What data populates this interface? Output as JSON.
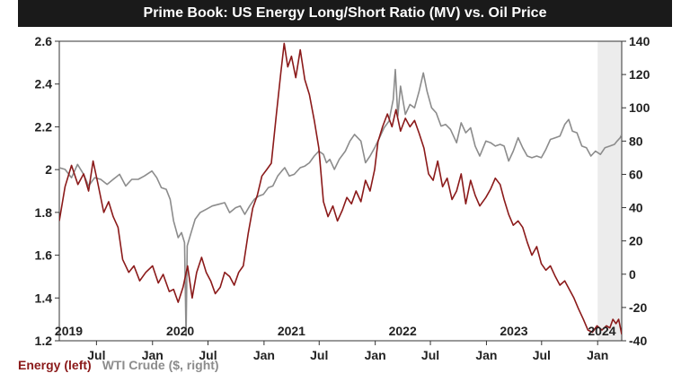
{
  "chart_data": {
    "type": "line",
    "title": "Prime Book: US Energy Long/Short Ratio (MV) vs. Oil Price",
    "x_range": [
      "2019-03-01",
      "2024-03-20"
    ],
    "y_left": {
      "ylim": [
        1.2,
        2.6
      ],
      "ticks": [
        "1.2",
        "1.4",
        "1.6",
        "1.8",
        "2",
        "2.2",
        "2.4",
        "2.6"
      ]
    },
    "y_right": {
      "ylim": [
        -40,
        140
      ],
      "ticks": [
        "-40",
        "-20",
        "0",
        "20",
        "40",
        "60",
        "80",
        "100",
        "120",
        "140"
      ]
    },
    "x_month_labels": [
      {
        "date": "2019-07-01",
        "label": "Jul"
      },
      {
        "date": "2020-01-01",
        "label": "Jan"
      },
      {
        "date": "2020-07-01",
        "label": "Jul"
      },
      {
        "date": "2021-01-01",
        "label": "Jan"
      },
      {
        "date": "2021-07-01",
        "label": "Jul"
      },
      {
        "date": "2022-01-01",
        "label": "Jan"
      },
      {
        "date": "2022-07-01",
        "label": "Jul"
      },
      {
        "date": "2023-01-01",
        "label": "Jan"
      },
      {
        "date": "2023-07-01",
        "label": "Jul"
      },
      {
        "date": "2024-01-01",
        "label": "Jan"
      }
    ],
    "x_year_labels": [
      {
        "date": "2019-04-01",
        "label": "2019"
      },
      {
        "date": "2020-04-01",
        "label": "2020"
      },
      {
        "date": "2021-04-01",
        "label": "2021"
      },
      {
        "date": "2022-04-01",
        "label": "2022"
      },
      {
        "date": "2023-04-01",
        "label": "2023"
      },
      {
        "date": "2024-01-15",
        "label": "2024"
      }
    ],
    "shaded_region": {
      "start": "2024-01-01",
      "end": "2024-03-20",
      "color": "#ececec"
    },
    "grid": true,
    "series": [
      {
        "name": "Energy (left)",
        "axis": "left",
        "color": "#8b1a1a",
        "points": [
          [
            "2019-03-01",
            1.76
          ],
          [
            "2019-03-20",
            1.92
          ],
          [
            "2019-04-10",
            2.02
          ],
          [
            "2019-05-01",
            1.93
          ],
          [
            "2019-05-20",
            1.98
          ],
          [
            "2019-06-05",
            1.9
          ],
          [
            "2019-06-20",
            2.04
          ],
          [
            "2019-07-05",
            1.94
          ],
          [
            "2019-07-25",
            1.8
          ],
          [
            "2019-08-10",
            1.85
          ],
          [
            "2019-08-25",
            1.78
          ],
          [
            "2019-09-10",
            1.73
          ],
          [
            "2019-09-25",
            1.58
          ],
          [
            "2019-10-15",
            1.52
          ],
          [
            "2019-11-01",
            1.55
          ],
          [
            "2019-11-20",
            1.48
          ],
          [
            "2019-12-10",
            1.52
          ],
          [
            "2020-01-01",
            1.55
          ],
          [
            "2020-01-20",
            1.47
          ],
          [
            "2020-02-05",
            1.51
          ],
          [
            "2020-02-25",
            1.43
          ],
          [
            "2020-03-10",
            1.44
          ],
          [
            "2020-03-25",
            1.38
          ],
          [
            "2020-04-10",
            1.45
          ],
          [
            "2020-04-25",
            1.55
          ],
          [
            "2020-05-10",
            1.4
          ],
          [
            "2020-05-25",
            1.52
          ],
          [
            "2020-06-10",
            1.59
          ],
          [
            "2020-06-25",
            1.52
          ],
          [
            "2020-07-10",
            1.48
          ],
          [
            "2020-07-25",
            1.42
          ],
          [
            "2020-08-10",
            1.45
          ],
          [
            "2020-08-25",
            1.52
          ],
          [
            "2020-09-10",
            1.5
          ],
          [
            "2020-09-25",
            1.46
          ],
          [
            "2020-10-10",
            1.52
          ],
          [
            "2020-10-25",
            1.55
          ],
          [
            "2020-11-10",
            1.7
          ],
          [
            "2020-11-25",
            1.82
          ],
          [
            "2020-12-10",
            1.88
          ],
          [
            "2020-12-25",
            1.97
          ],
          [
            "2021-01-10",
            2.0
          ],
          [
            "2021-01-25",
            2.03
          ],
          [
            "2021-02-10",
            2.25
          ],
          [
            "2021-02-25",
            2.45
          ],
          [
            "2021-03-08",
            2.59
          ],
          [
            "2021-03-20",
            2.48
          ],
          [
            "2021-04-01",
            2.53
          ],
          [
            "2021-04-15",
            2.43
          ],
          [
            "2021-04-30",
            2.56
          ],
          [
            "2021-05-15",
            2.42
          ],
          [
            "2021-05-30",
            2.35
          ],
          [
            "2021-06-15",
            2.23
          ],
          [
            "2021-06-30",
            2.1
          ],
          [
            "2021-07-15",
            1.85
          ],
          [
            "2021-07-30",
            1.78
          ],
          [
            "2021-08-15",
            1.83
          ],
          [
            "2021-08-30",
            1.76
          ],
          [
            "2021-09-15",
            1.81
          ],
          [
            "2021-09-30",
            1.87
          ],
          [
            "2021-10-15",
            1.84
          ],
          [
            "2021-10-30",
            1.9
          ],
          [
            "2021-11-15",
            1.85
          ],
          [
            "2021-11-30",
            1.95
          ],
          [
            "2021-12-15",
            1.9
          ],
          [
            "2021-12-30",
            2.0
          ],
          [
            "2022-01-10",
            2.13
          ],
          [
            "2022-01-25",
            2.2
          ],
          [
            "2022-02-10",
            2.26
          ],
          [
            "2022-02-25",
            2.2
          ],
          [
            "2022-03-10",
            2.28
          ],
          [
            "2022-03-25",
            2.18
          ],
          [
            "2022-04-10",
            2.24
          ],
          [
            "2022-04-25",
            2.2
          ],
          [
            "2022-05-10",
            2.23
          ],
          [
            "2022-05-25",
            2.17
          ],
          [
            "2022-06-10",
            2.1
          ],
          [
            "2022-06-25",
            1.98
          ],
          [
            "2022-07-10",
            1.95
          ],
          [
            "2022-07-25",
            2.04
          ],
          [
            "2022-08-10",
            1.92
          ],
          [
            "2022-08-25",
            1.96
          ],
          [
            "2022-09-10",
            1.86
          ],
          [
            "2022-09-25",
            1.9
          ],
          [
            "2022-10-10",
            1.98
          ],
          [
            "2022-10-25",
            1.84
          ],
          [
            "2022-11-10",
            1.95
          ],
          [
            "2022-11-25",
            1.88
          ],
          [
            "2022-12-10",
            1.83
          ],
          [
            "2022-12-30",
            1.87
          ],
          [
            "2023-01-15",
            1.91
          ],
          [
            "2023-01-30",
            1.96
          ],
          [
            "2023-02-15",
            1.93
          ],
          [
            "2023-02-28",
            1.86
          ],
          [
            "2023-03-15",
            1.79
          ],
          [
            "2023-03-30",
            1.74
          ],
          [
            "2023-04-15",
            1.76
          ],
          [
            "2023-04-30",
            1.73
          ],
          [
            "2023-05-15",
            1.66
          ],
          [
            "2023-05-30",
            1.6
          ],
          [
            "2023-06-15",
            1.64
          ],
          [
            "2023-06-30",
            1.56
          ],
          [
            "2023-07-15",
            1.53
          ],
          [
            "2023-07-30",
            1.55
          ],
          [
            "2023-08-15",
            1.5
          ],
          [
            "2023-08-30",
            1.46
          ],
          [
            "2023-09-15",
            1.48
          ],
          [
            "2023-09-30",
            1.44
          ],
          [
            "2023-10-15",
            1.4
          ],
          [
            "2023-10-30",
            1.35
          ],
          [
            "2023-11-15",
            1.3
          ],
          [
            "2023-11-30",
            1.25
          ],
          [
            "2023-12-15",
            1.24
          ],
          [
            "2023-12-30",
            1.27
          ],
          [
            "2024-01-15",
            1.25
          ],
          [
            "2024-01-30",
            1.27
          ],
          [
            "2024-02-10",
            1.26
          ],
          [
            "2024-02-20",
            1.3
          ],
          [
            "2024-03-01",
            1.28
          ],
          [
            "2024-03-10",
            1.3
          ],
          [
            "2024-03-20",
            1.23
          ]
        ]
      },
      {
        "name": "WTI Crude ($, right)",
        "axis": "right",
        "color": "#8c8c8c",
        "points": [
          [
            "2019-03-01",
            64
          ],
          [
            "2019-03-20",
            63
          ],
          [
            "2019-04-10",
            58
          ],
          [
            "2019-04-30",
            66
          ],
          [
            "2019-05-20",
            60
          ],
          [
            "2019-06-05",
            53
          ],
          [
            "2019-06-25",
            58
          ],
          [
            "2019-07-15",
            57
          ],
          [
            "2019-08-05",
            54
          ],
          [
            "2019-08-25",
            57
          ],
          [
            "2019-09-15",
            60
          ],
          [
            "2019-10-05",
            53
          ],
          [
            "2019-10-25",
            57
          ],
          [
            "2019-11-15",
            57
          ],
          [
            "2019-12-05",
            59
          ],
          [
            "2019-12-30",
            62
          ],
          [
            "2020-01-15",
            58
          ],
          [
            "2020-01-30",
            52
          ],
          [
            "2020-02-15",
            51
          ],
          [
            "2020-02-28",
            45
          ],
          [
            "2020-03-10",
            32
          ],
          [
            "2020-03-25",
            22
          ],
          [
            "2020-04-05",
            25
          ],
          [
            "2020-04-15",
            19
          ],
          [
            "2020-04-20",
            -37
          ],
          [
            "2020-04-24",
            17
          ],
          [
            "2020-05-05",
            24
          ],
          [
            "2020-05-20",
            33
          ],
          [
            "2020-06-05",
            37
          ],
          [
            "2020-06-25",
            39
          ],
          [
            "2020-07-15",
            41
          ],
          [
            "2020-08-05",
            42
          ],
          [
            "2020-08-25",
            43
          ],
          [
            "2020-09-10",
            37
          ],
          [
            "2020-09-30",
            40
          ],
          [
            "2020-10-15",
            41
          ],
          [
            "2020-10-30",
            36
          ],
          [
            "2020-11-15",
            41
          ],
          [
            "2020-11-30",
            45
          ],
          [
            "2020-12-15",
            47
          ],
          [
            "2020-12-30",
            48
          ],
          [
            "2021-01-15",
            52
          ],
          [
            "2021-01-30",
            53
          ],
          [
            "2021-02-15",
            59
          ],
          [
            "2021-02-28",
            62
          ],
          [
            "2021-03-10",
            64
          ],
          [
            "2021-03-25",
            59
          ],
          [
            "2021-04-10",
            60
          ],
          [
            "2021-04-30",
            64
          ],
          [
            "2021-05-15",
            65
          ],
          [
            "2021-05-30",
            67
          ],
          [
            "2021-06-15",
            71
          ],
          [
            "2021-06-30",
            74
          ],
          [
            "2021-07-15",
            72
          ],
          [
            "2021-07-25",
            67
          ],
          [
            "2021-08-05",
            69
          ],
          [
            "2021-08-20",
            63
          ],
          [
            "2021-09-05",
            69
          ],
          [
            "2021-09-25",
            74
          ],
          [
            "2021-10-10",
            80
          ],
          [
            "2021-10-25",
            84
          ],
          [
            "2021-11-15",
            80
          ],
          [
            "2021-11-30",
            67
          ],
          [
            "2021-12-15",
            71
          ],
          [
            "2021-12-30",
            76
          ],
          [
            "2022-01-15",
            82
          ],
          [
            "2022-01-30",
            88
          ],
          [
            "2022-02-15",
            92
          ],
          [
            "2022-03-01",
            105
          ],
          [
            "2022-03-08",
            123
          ],
          [
            "2022-03-16",
            95
          ],
          [
            "2022-03-25",
            113
          ],
          [
            "2022-04-10",
            96
          ],
          [
            "2022-04-25",
            102
          ],
          [
            "2022-05-10",
            100
          ],
          [
            "2022-05-25",
            110
          ],
          [
            "2022-06-08",
            121
          ],
          [
            "2022-06-20",
            110
          ],
          [
            "2022-07-05",
            100
          ],
          [
            "2022-07-20",
            97
          ],
          [
            "2022-08-05",
            89
          ],
          [
            "2022-08-20",
            90
          ],
          [
            "2022-09-05",
            87
          ],
          [
            "2022-09-25",
            79
          ],
          [
            "2022-10-10",
            91
          ],
          [
            "2022-10-25",
            85
          ],
          [
            "2022-11-10",
            88
          ],
          [
            "2022-11-25",
            77
          ],
          [
            "2022-12-10",
            71
          ],
          [
            "2022-12-30",
            80
          ],
          [
            "2023-01-15",
            79
          ],
          [
            "2023-01-30",
            77
          ],
          [
            "2023-02-15",
            78
          ],
          [
            "2023-02-28",
            77
          ],
          [
            "2023-03-15",
            68
          ],
          [
            "2023-03-30",
            74
          ],
          [
            "2023-04-15",
            82
          ],
          [
            "2023-04-30",
            76
          ],
          [
            "2023-05-15",
            71
          ],
          [
            "2023-05-30",
            70
          ],
          [
            "2023-06-15",
            71
          ],
          [
            "2023-06-30",
            70
          ],
          [
            "2023-07-15",
            75
          ],
          [
            "2023-07-30",
            81
          ],
          [
            "2023-08-15",
            82
          ],
          [
            "2023-08-30",
            83
          ],
          [
            "2023-09-15",
            90
          ],
          [
            "2023-09-28",
            93
          ],
          [
            "2023-10-10",
            86
          ],
          [
            "2023-10-25",
            85
          ],
          [
            "2023-11-10",
            77
          ],
          [
            "2023-11-25",
            76
          ],
          [
            "2023-12-10",
            71
          ],
          [
            "2023-12-25",
            74
          ],
          [
            "2024-01-10",
            72
          ],
          [
            "2024-01-25",
            76
          ],
          [
            "2024-02-10",
            77
          ],
          [
            "2024-02-25",
            78
          ],
          [
            "2024-03-05",
            80
          ],
          [
            "2024-03-15",
            82
          ],
          [
            "2024-03-20",
            84
          ]
        ]
      }
    ]
  }
}
